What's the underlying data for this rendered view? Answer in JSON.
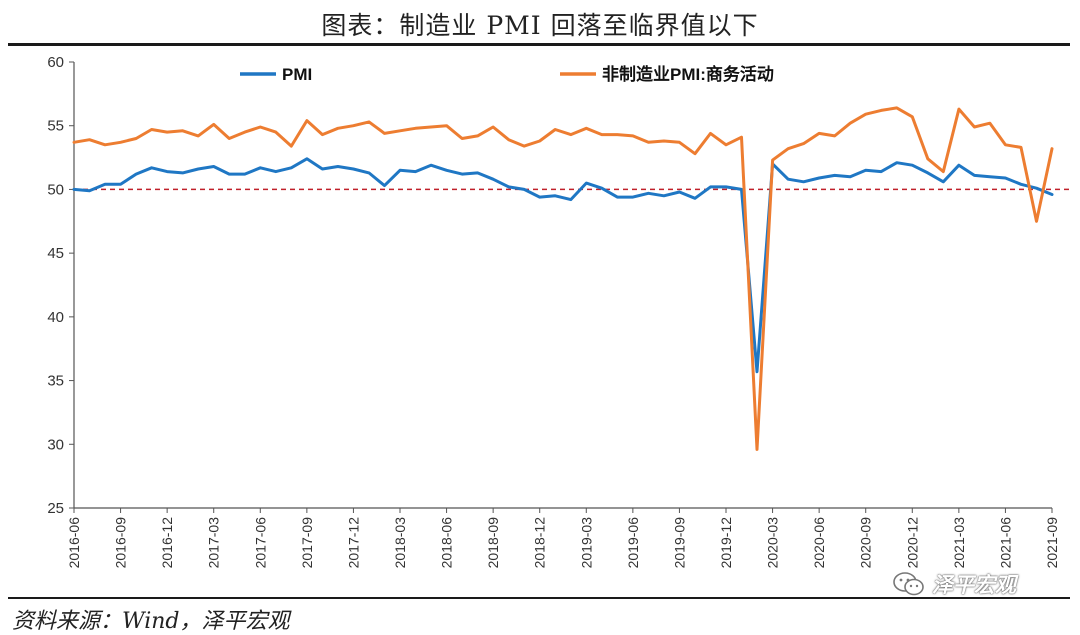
{
  "title": "图表：制造业 PMI 回落至临界值以下",
  "source": "资料来源：Wind，泽平宏观",
  "watermark": {
    "icon": "wechat-icon",
    "text": "泽平宏观"
  },
  "colors": {
    "pmi": "#1f77c4",
    "non_manufacturing": "#ed7d31",
    "threshold": "#c0202a"
  },
  "chart_data": {
    "type": "line",
    "title": "",
    "ylim": [
      25,
      60
    ],
    "yticks": [
      25,
      30,
      35,
      40,
      45,
      50,
      55,
      60
    ],
    "grid": false,
    "legend_position": "top",
    "reference_line": {
      "y": 50,
      "style": "dashed"
    },
    "xtick_labels": [
      "2016-06",
      "2016-09",
      "2016-12",
      "2017-03",
      "2017-06",
      "2017-09",
      "2017-12",
      "2018-03",
      "2018-06",
      "2018-09",
      "2018-12",
      "2019-03",
      "2019-06",
      "2019-09",
      "2019-12",
      "2020-03",
      "2020-06",
      "2020-09",
      "2020-12",
      "2021-03",
      "2021-06",
      "2021-09"
    ],
    "x": [
      "2016-06",
      "2016-07",
      "2016-08",
      "2016-09",
      "2016-10",
      "2016-11",
      "2016-12",
      "2017-01",
      "2017-02",
      "2017-03",
      "2017-04",
      "2017-05",
      "2017-06",
      "2017-07",
      "2017-08",
      "2017-09",
      "2017-10",
      "2017-11",
      "2017-12",
      "2018-01",
      "2018-02",
      "2018-03",
      "2018-04",
      "2018-05",
      "2018-06",
      "2018-07",
      "2018-08",
      "2018-09",
      "2018-10",
      "2018-11",
      "2018-12",
      "2019-01",
      "2019-02",
      "2019-03",
      "2019-04",
      "2019-05",
      "2019-06",
      "2019-07",
      "2019-08",
      "2019-09",
      "2019-10",
      "2019-11",
      "2019-12",
      "2020-01",
      "2020-02",
      "2020-03",
      "2020-04",
      "2020-05",
      "2020-06",
      "2020-07",
      "2020-08",
      "2020-09",
      "2020-10",
      "2020-11",
      "2020-12",
      "2021-01",
      "2021-02",
      "2021-03",
      "2021-04",
      "2021-05",
      "2021-06",
      "2021-07",
      "2021-08",
      "2021-09"
    ],
    "series": [
      {
        "name": "PMI",
        "key": "pmi",
        "values": [
          50.0,
          49.9,
          50.4,
          50.4,
          51.2,
          51.7,
          51.4,
          51.3,
          51.6,
          51.8,
          51.2,
          51.2,
          51.7,
          51.4,
          51.7,
          52.4,
          51.6,
          51.8,
          51.6,
          51.3,
          50.3,
          51.5,
          51.4,
          51.9,
          51.5,
          51.2,
          51.3,
          50.8,
          50.2,
          50.0,
          49.4,
          49.5,
          49.2,
          50.5,
          50.1,
          49.4,
          49.4,
          49.7,
          49.5,
          49.8,
          49.3,
          50.2,
          50.2,
          50.0,
          35.7,
          52.0,
          50.8,
          50.6,
          50.9,
          51.1,
          51.0,
          51.5,
          51.4,
          52.1,
          51.9,
          51.3,
          50.6,
          51.9,
          51.1,
          51.0,
          50.9,
          50.4,
          50.1,
          49.6
        ]
      },
      {
        "name": "非制造业PMI:商务活动",
        "key": "non_manufacturing",
        "values": [
          53.7,
          53.9,
          53.5,
          53.7,
          54.0,
          54.7,
          54.5,
          54.6,
          54.2,
          55.1,
          54.0,
          54.5,
          54.9,
          54.5,
          53.4,
          55.4,
          54.3,
          54.8,
          55.0,
          55.3,
          54.4,
          54.6,
          54.8,
          54.9,
          55.0,
          54.0,
          54.2,
          54.9,
          53.9,
          53.4,
          53.8,
          54.7,
          54.3,
          54.8,
          54.3,
          54.3,
          54.2,
          53.7,
          53.8,
          53.7,
          52.8,
          54.4,
          53.5,
          54.1,
          29.6,
          52.3,
          53.2,
          53.6,
          54.4,
          54.2,
          55.2,
          55.9,
          56.2,
          56.4,
          55.7,
          52.4,
          51.4,
          56.3,
          54.9,
          55.2,
          53.5,
          53.3,
          47.5,
          53.2
        ]
      }
    ]
  }
}
